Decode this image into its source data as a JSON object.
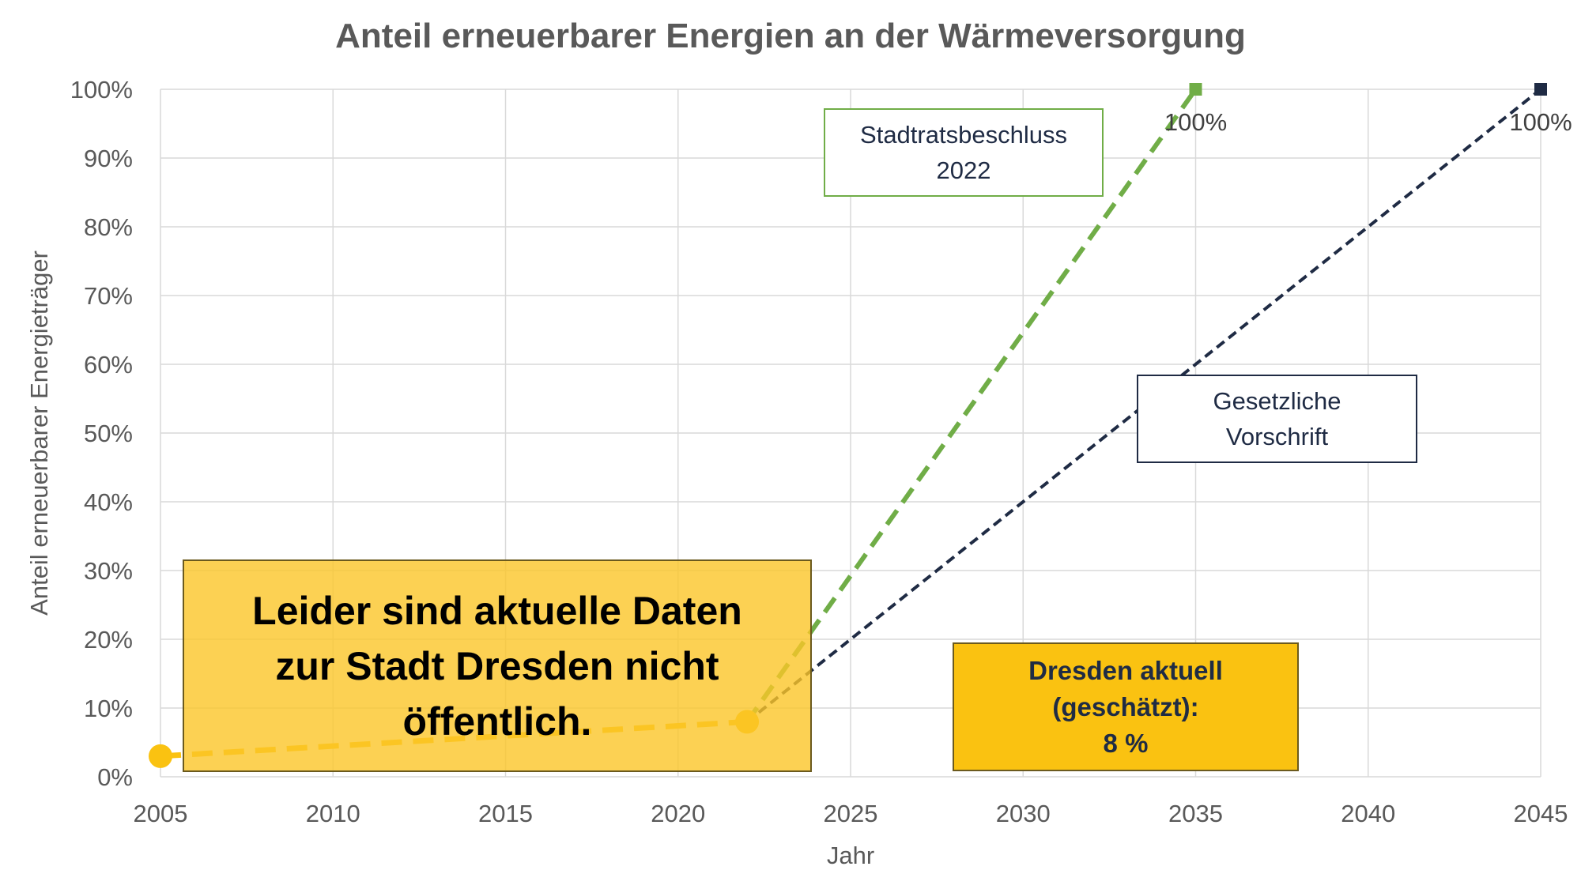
{
  "chart_data": {
    "type": "line",
    "title": "Anteil erneuerbarer Energien an der Wärmeversorgung",
    "xlabel": "Jahr",
    "ylabel": "Anteil erneuerbarer Energieträger",
    "xlim": [
      2005,
      2045
    ],
    "ylim": [
      0,
      100
    ],
    "x_ticks": [
      2005,
      2010,
      2015,
      2020,
      2025,
      2030,
      2035,
      2040,
      2045
    ],
    "y_ticks": [
      0,
      10,
      20,
      30,
      40,
      50,
      60,
      70,
      80,
      90,
      100
    ],
    "y_tick_labels": [
      "0%",
      "10%",
      "20%",
      "30%",
      "40%",
      "50%",
      "60%",
      "70%",
      "80%",
      "90%",
      "100%"
    ],
    "x_tick_labels": [
      "2005",
      "2010",
      "2015",
      "2020",
      "2025",
      "2030",
      "2035",
      "2040",
      "2045"
    ],
    "grid": true,
    "series": [
      {
        "key": "dresden",
        "color": "#fac211",
        "style": "dashed",
        "marker": "circle",
        "points": [
          [
            2005,
            3
          ],
          [
            2022,
            8
          ]
        ]
      },
      {
        "key": "stadtrat",
        "color": "#70ad47",
        "style": "dashed",
        "marker": "square",
        "points": [
          [
            2022,
            8
          ],
          [
            2035,
            100
          ]
        ],
        "end_label": "100%"
      },
      {
        "key": "gesetz",
        "color": "#1f2b44",
        "style": "dashed",
        "marker": "square",
        "points": [
          [
            2022,
            8
          ],
          [
            2045,
            100
          ]
        ],
        "end_label": "100%"
      }
    ]
  },
  "annotations": {
    "stadtrat": [
      "Stadtratsbeschluss",
      "2022"
    ],
    "gesetz": [
      "Gesetzliche",
      "Vorschrift"
    ],
    "aktuell": [
      "Dresden aktuell",
      "(geschätzt):",
      "8 %"
    ],
    "leider": [
      "Leider sind aktuelle Daten",
      "zur Stadt Dresden nicht",
      "öffentlich."
    ]
  }
}
